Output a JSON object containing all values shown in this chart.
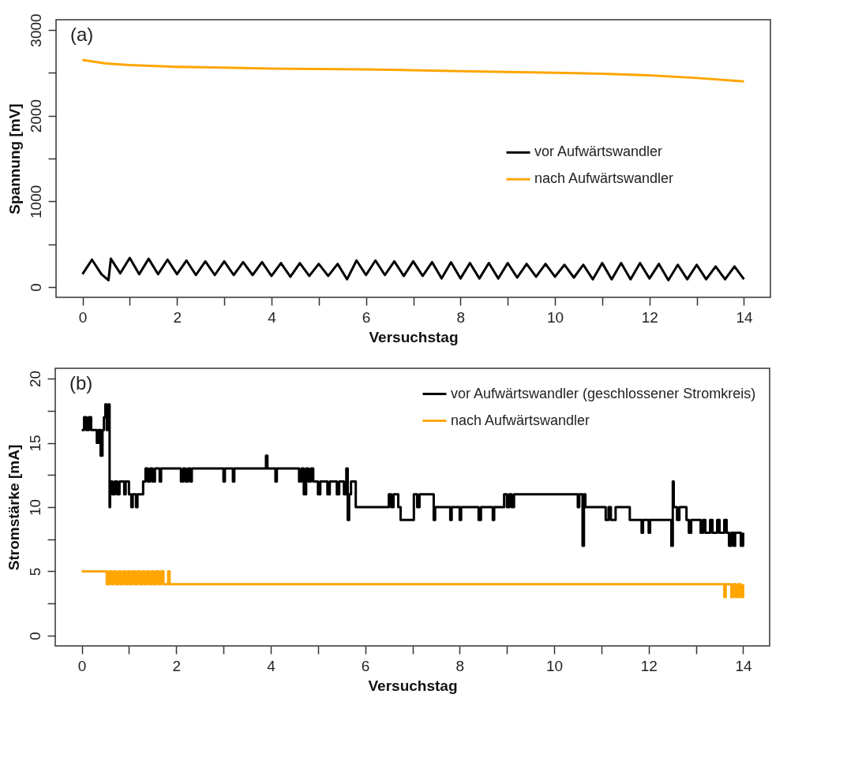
{
  "chart_data": [
    {
      "type": "line",
      "xlabel": "Versuchstag",
      "ylabel": "Spannung [mV]",
      "annotations": [
        "(a)"
      ],
      "xlim": [
        -0.56,
        14.56
      ],
      "xticks": [
        0,
        {
          "value": 1,
          "label": null
        },
        2,
        {
          "value": 3,
          "label": null
        },
        4,
        {
          "value": 5,
          "label": null
        },
        6,
        {
          "value": 7,
          "label": null
        },
        8,
        {
          "value": 9,
          "label": null
        },
        10,
        {
          "value": 11,
          "label": null
        },
        12,
        {
          "value": 13,
          "label": null
        },
        14
      ],
      "ylim": [
        -120,
        3120
      ],
      "yticks": [
        0,
        {
          "value": 500,
          "label": null
        },
        1000,
        {
          "value": 1500,
          "label": null
        },
        2000,
        {
          "value": 2500,
          "label": null
        },
        3000
      ],
      "grid": false,
      "legend": "right",
      "marker": "none",
      "line_style": "solid",
      "series": [
        {
          "name": "vor Aufwärtswandler",
          "color": "#000000",
          "type": "line",
          "x": [
            0,
            0.2,
            0.4,
            0.55,
            0.6,
            0.8,
            1.0,
            1.2,
            1.4,
            1.6,
            1.8,
            2.0,
            2.2,
            2.4,
            2.6,
            2.8,
            3.0,
            3.2,
            3.4,
            3.6,
            3.8,
            4.0,
            4.2,
            4.4,
            4.6,
            4.8,
            5.0,
            5.2,
            5.4,
            5.6,
            5.8,
            6.0,
            6.2,
            6.4,
            6.6,
            6.8,
            7.0,
            7.2,
            7.4,
            7.6,
            7.8,
            8.0,
            8.2,
            8.4,
            8.6,
            8.8,
            9.0,
            9.2,
            9.4,
            9.6,
            9.8,
            10.0,
            10.2,
            10.4,
            10.6,
            10.8,
            11.0,
            11.2,
            11.4,
            11.6,
            11.8,
            12.0,
            12.2,
            12.4,
            12.6,
            12.8,
            13.0,
            13.2,
            13.4,
            13.6,
            13.8,
            14.0
          ],
          "values": [
            150,
            320,
            150,
            80,
            330,
            160,
            340,
            150,
            330,
            150,
            320,
            150,
            310,
            140,
            300,
            140,
            300,
            140,
            290,
            140,
            290,
            130,
            280,
            120,
            280,
            130,
            270,
            130,
            270,
            90,
            310,
            140,
            310,
            140,
            300,
            130,
            300,
            130,
            290,
            100,
            290,
            100,
            280,
            100,
            280,
            100,
            280,
            110,
            270,
            120,
            270,
            120,
            260,
            110,
            260,
            90,
            280,
            90,
            280,
            90,
            280,
            100,
            270,
            80,
            260,
            90,
            260,
            90,
            240,
            90,
            240,
            90
          ]
        },
        {
          "name": "nach Aufwärtswandler",
          "color": "#ffa500",
          "type": "line",
          "x": [
            0,
            0.5,
            1,
            2,
            3,
            4,
            6,
            8,
            10,
            11,
            12,
            13,
            14
          ],
          "values": [
            2650,
            2610,
            2590,
            2570,
            2560,
            2550,
            2540,
            2520,
            2500,
            2490,
            2470,
            2440,
            2400
          ]
        }
      ]
    },
    {
      "type": "line",
      "xlabel": "Versuchstag",
      "ylabel": "Stromstärke [mA]",
      "annotations": [
        "(b)"
      ],
      "xlim": [
        -0.56,
        14.56
      ],
      "xticks": [
        0,
        {
          "value": 1,
          "label": null
        },
        2,
        {
          "value": 3,
          "label": null
        },
        4,
        {
          "value": 5,
          "label": null
        },
        6,
        {
          "value": 7,
          "label": null
        },
        8,
        {
          "value": 9,
          "label": null
        },
        10,
        {
          "value": 11,
          "label": null
        },
        12,
        {
          "value": 13,
          "label": null
        },
        14
      ],
      "ylim": [
        -0.8,
        20.8
      ],
      "yticks": [
        0,
        {
          "value": 2.5,
          "label": null
        },
        5,
        {
          "value": 7.5,
          "label": null
        },
        10,
        {
          "value": 12.5,
          "label": null
        },
        15,
        {
          "value": 17.5,
          "label": null
        },
        20
      ],
      "grid": false,
      "legend": "top right",
      "marker": "none",
      "line_style": "solid",
      "series": [
        {
          "name": "vor Aufwärtswandler (geschlossener Stromkreis)",
          "color": "#000000",
          "type": "step",
          "x": [
            0,
            0.05,
            0.1,
            0.15,
            0.2,
            0.3,
            0.32,
            0.36,
            0.4,
            0.44,
            0.47,
            0.5,
            0.53,
            0.55,
            0.57,
            0.59,
            0.6,
            0.65,
            0.7,
            0.75,
            0.8,
            0.9,
            0.93,
            1.0,
            1.05,
            1.08,
            1.15,
            1.18,
            1.3,
            1.35,
            1.4,
            1.45,
            1.5,
            1.55,
            1.65,
            1.68,
            2.1,
            2.15,
            2.2,
            2.25,
            2.3,
            2.33,
            3.0,
            3.03,
            3.2,
            3.23,
            3.9,
            3.93,
            4.1,
            4.13,
            4.6,
            4.65,
            4.7,
            4.75,
            4.8,
            4.85,
            4.9,
            5.0,
            5.05,
            5.2,
            5.25,
            5.4,
            5.45,
            5.55,
            5.6,
            5.63,
            5.66,
            5.7,
            5.8,
            6.5,
            6.55,
            6.6,
            6.7,
            6.75,
            7.03,
            7.1,
            7.15,
            7.45,
            7.48,
            7.8,
            7.83,
            8.0,
            8.03,
            8.4,
            8.45,
            8.7,
            8.73,
            8.94,
            9.0,
            9.05,
            9.1,
            9.15,
            10.5,
            10.53,
            10.6,
            10.63,
            10.66,
            11.09,
            11.15,
            11.2,
            11.3,
            11.6,
            11.85,
            11.88,
            12.0,
            12.03,
            12.48,
            12.51,
            12.53,
            12.6,
            12.65,
            12.8,
            12.85,
            12.9,
            13.1,
            13.15,
            13.2,
            13.3,
            13.35,
            13.45,
            13.5,
            13.6,
            13.65,
            13.7,
            13.75,
            13.8,
            13.83,
            13.95,
            14.0
          ],
          "values": [
            16,
            17,
            16,
            17,
            16,
            16,
            15,
            16,
            14,
            16,
            17,
            18,
            16,
            17,
            18,
            10,
            12,
            11,
            12,
            11,
            12,
            11,
            12,
            11,
            10,
            11,
            10,
            11,
            12,
            13,
            12,
            13,
            12,
            13,
            12,
            13,
            12,
            13,
            12,
            13,
            12,
            13,
            12,
            13,
            12,
            13,
            14,
            13,
            12,
            13,
            12,
            13,
            11,
            13,
            12,
            13,
            12,
            11,
            12,
            11,
            12,
            11,
            12,
            11,
            13,
            9,
            11,
            12,
            10,
            11,
            10,
            11,
            10,
            9,
            11,
            10,
            11,
            9,
            10,
            9,
            10,
            9,
            10,
            9,
            10,
            9,
            10,
            11,
            10,
            11,
            10,
            11,
            10,
            11,
            7,
            11,
            10,
            9,
            10,
            9,
            10,
            9,
            8,
            9,
            8,
            9,
            7,
            12,
            10,
            9,
            10,
            9,
            8,
            9,
            8,
            9,
            8,
            9,
            8,
            9,
            8,
            9,
            8,
            7,
            8,
            7,
            8,
            7,
            8
          ]
        },
        {
          "name": "nach Aufwärtswandler",
          "color": "#ffa500",
          "type": "step",
          "x": [
            0,
            0.53,
            0.58,
            0.63,
            0.68,
            0.73,
            0.78,
            0.83,
            0.88,
            0.93,
            0.98,
            1.03,
            1.08,
            1.13,
            1.18,
            1.23,
            1.28,
            1.33,
            1.38,
            1.43,
            1.48,
            1.53,
            1.58,
            1.63,
            1.68,
            1.73,
            1.8,
            1.83,
            1.86,
            13.6,
            13.63,
            13.75,
            13.8,
            13.85,
            13.9,
            13.95,
            14.0
          ],
          "values": [
            5,
            4,
            5,
            4,
            5,
            4,
            5,
            4,
            5,
            4,
            5,
            4,
            5,
            4,
            5,
            4,
            5,
            4,
            5,
            4,
            5,
            4,
            5,
            4,
            5,
            4,
            4,
            5,
            4,
            3,
            4,
            3,
            4,
            3,
            4,
            3,
            4
          ]
        }
      ]
    }
  ]
}
